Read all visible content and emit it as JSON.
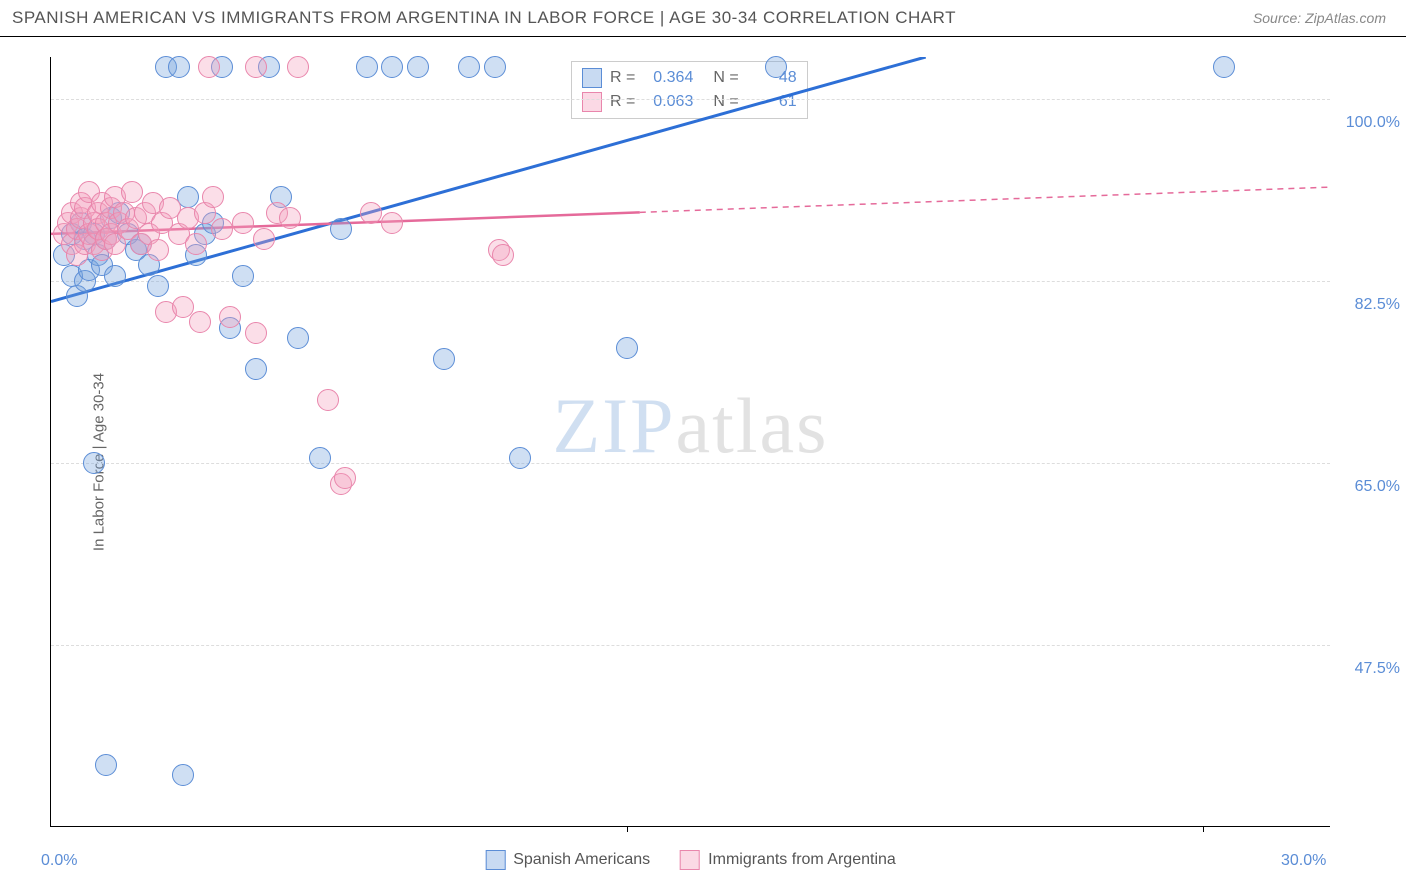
{
  "header": {
    "title": "SPANISH AMERICAN VS IMMIGRANTS FROM ARGENTINA IN LABOR FORCE | AGE 30-34 CORRELATION CHART",
    "source": "Source: ZipAtlas.com"
  },
  "chart": {
    "type": "scatter",
    "ylabel": "In Labor Force | Age 30-34",
    "xlim": [
      0,
      30
    ],
    "ylim": [
      30,
      104
    ],
    "xticks": [
      {
        "pos": 0.0,
        "label": "0.0%"
      },
      {
        "pos": 30.0,
        "label": "30.0%"
      }
    ],
    "xtick_marks": [
      13.5,
      27.0
    ],
    "yticks": [
      {
        "pos": 100.0,
        "label": "100.0%"
      },
      {
        "pos": 82.5,
        "label": "82.5%"
      },
      {
        "pos": 65.0,
        "label": "65.0%"
      },
      {
        "pos": 47.5,
        "label": "47.5%"
      }
    ],
    "background_color": "#ffffff",
    "grid_color": "#dddddd",
    "series": [
      {
        "name": "Spanish Americans",
        "color_fill": "rgba(118,162,222,0.35)",
        "color_stroke": "#5b8dd6",
        "R": "0.364",
        "N": "48",
        "trend": {
          "x1": 0,
          "y1": 80.5,
          "x2": 20.5,
          "y2": 104,
          "dash_from_x": null
        },
        "points": [
          [
            0.3,
            85
          ],
          [
            0.5,
            87
          ],
          [
            0.5,
            83
          ],
          [
            0.6,
            81
          ],
          [
            0.7,
            88
          ],
          [
            0.8,
            82.5
          ],
          [
            0.8,
            86.5
          ],
          [
            0.9,
            83.5
          ],
          [
            1.0,
            87
          ],
          [
            1.0,
            65
          ],
          [
            1.1,
            85
          ],
          [
            1.2,
            84
          ],
          [
            1.3,
            86.5
          ],
          [
            1.4,
            88.5
          ],
          [
            1.5,
            83
          ],
          [
            1.6,
            89
          ],
          [
            1.8,
            87
          ],
          [
            2.0,
            85.5
          ],
          [
            2.1,
            86
          ],
          [
            2.3,
            84
          ],
          [
            2.5,
            82
          ],
          [
            2.7,
            103
          ],
          [
            3.0,
            103
          ],
          [
            3.2,
            90.5
          ],
          [
            3.4,
            85
          ],
          [
            3.6,
            87
          ],
          [
            3.8,
            88
          ],
          [
            4.0,
            103
          ],
          [
            4.2,
            78
          ],
          [
            4.5,
            83
          ],
          [
            4.8,
            74
          ],
          [
            5.1,
            103
          ],
          [
            5.4,
            90.5
          ],
          [
            5.8,
            77
          ],
          [
            6.3,
            65.5
          ],
          [
            6.8,
            87.5
          ],
          [
            7.4,
            103
          ],
          [
            8.0,
            103
          ],
          [
            8.6,
            103
          ],
          [
            9.2,
            75
          ],
          [
            9.8,
            103
          ],
          [
            10.4,
            103
          ],
          [
            11.0,
            65.5
          ],
          [
            13.5,
            76
          ],
          [
            17.0,
            103
          ],
          [
            27.5,
            103
          ],
          [
            1.3,
            36
          ],
          [
            3.1,
            35
          ]
        ]
      },
      {
        "name": "Immigrants from Argentina",
        "color_fill": "rgba(244,160,190,0.35)",
        "color_stroke": "#e986ac",
        "R": "0.063",
        "N": "61",
        "trend": {
          "x1": 0,
          "y1": 87.0,
          "x2": 30,
          "y2": 91.5,
          "dash_from_x": 13.8
        },
        "points": [
          [
            0.3,
            87
          ],
          [
            0.4,
            88
          ],
          [
            0.5,
            86
          ],
          [
            0.5,
            89
          ],
          [
            0.6,
            87.5
          ],
          [
            0.6,
            85
          ],
          [
            0.7,
            88.5
          ],
          [
            0.7,
            90
          ],
          [
            0.8,
            86
          ],
          [
            0.8,
            89.5
          ],
          [
            0.9,
            87
          ],
          [
            0.9,
            91
          ],
          [
            1.0,
            88
          ],
          [
            1.0,
            86
          ],
          [
            1.1,
            89
          ],
          [
            1.1,
            87.5
          ],
          [
            1.2,
            90
          ],
          [
            1.2,
            85.5
          ],
          [
            1.3,
            88
          ],
          [
            1.3,
            86.5
          ],
          [
            1.4,
            89.5
          ],
          [
            1.4,
            87
          ],
          [
            1.5,
            90.5
          ],
          [
            1.5,
            86
          ],
          [
            1.6,
            88
          ],
          [
            1.7,
            89
          ],
          [
            1.8,
            87.5
          ],
          [
            1.9,
            91
          ],
          [
            2.0,
            88.5
          ],
          [
            2.1,
            86
          ],
          [
            2.2,
            89
          ],
          [
            2.3,
            87
          ],
          [
            2.4,
            90
          ],
          [
            2.5,
            85.5
          ],
          [
            2.6,
            88
          ],
          [
            2.7,
            79.5
          ],
          [
            2.8,
            89.5
          ],
          [
            3.0,
            87
          ],
          [
            3.1,
            80
          ],
          [
            3.2,
            88.5
          ],
          [
            3.4,
            86
          ],
          [
            3.5,
            78.5
          ],
          [
            3.6,
            89
          ],
          [
            3.8,
            90.5
          ],
          [
            4.0,
            87.5
          ],
          [
            4.2,
            79
          ],
          [
            4.5,
            88
          ],
          [
            4.8,
            77.5
          ],
          [
            5.0,
            86.5
          ],
          [
            5.3,
            89
          ],
          [
            5.6,
            88.5
          ],
          [
            5.8,
            103
          ],
          [
            6.5,
            71
          ],
          [
            6.8,
            63
          ],
          [
            6.9,
            63.5
          ],
          [
            7.5,
            89
          ],
          [
            8.0,
            88
          ],
          [
            10.5,
            85.5
          ],
          [
            10.6,
            85
          ],
          [
            3.7,
            103
          ],
          [
            4.8,
            103
          ]
        ]
      }
    ],
    "legend_bottom": [
      {
        "label": "Spanish Americans",
        "swatch": "blue"
      },
      {
        "label": "Immigrants from Argentina",
        "swatch": "pink"
      }
    ],
    "watermark": {
      "zip": "ZIP",
      "atlas": "atlas"
    }
  }
}
